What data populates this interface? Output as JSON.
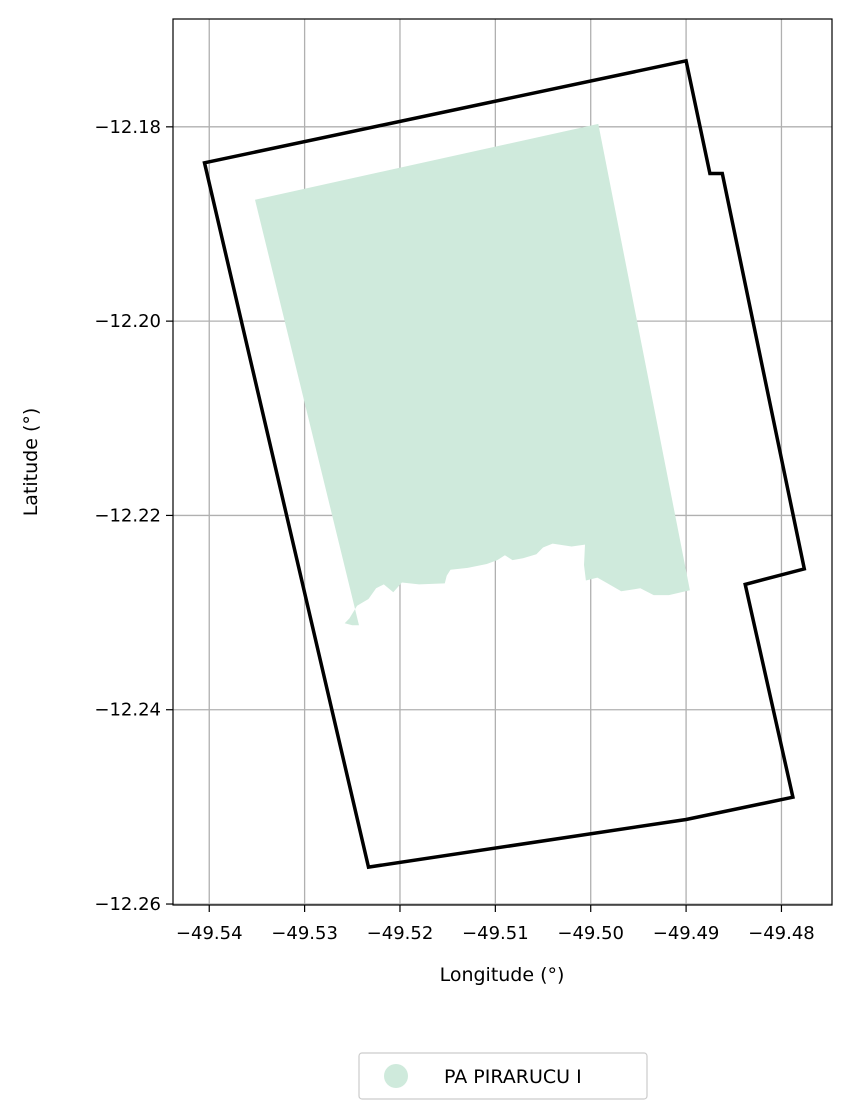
{
  "chart_data": {
    "type": "map",
    "xlabel": "Longitude (°)",
    "ylabel": "Latitude (°)",
    "xlim": [
      -49.5438,
      -49.4747
    ],
    "ylim": [
      -12.2601,
      -12.1689
    ],
    "xticks": [
      -49.54,
      -49.53,
      -49.52,
      -49.51,
      -49.5,
      -49.49,
      -49.48
    ],
    "yticks": [
      -12.18,
      -12.2,
      -12.22,
      -12.24,
      -12.26
    ],
    "xtick_labels": [
      "−49.54",
      "−49.53",
      "−49.52",
      "−49.51",
      "−49.50",
      "−49.49",
      "−49.48"
    ],
    "ytick_labels": [
      "−12.18",
      "−12.20",
      "−12.22",
      "−12.24",
      "−12.26"
    ],
    "grid": true,
    "boundary_color": "#000000",
    "fill_color": "#cfeadc",
    "grid_color": "#b0b0b0",
    "legend_position": "bottom-center",
    "legend": [
      {
        "label": "PA PIRARUCU I",
        "color": "#cfeadc"
      }
    ],
    "boundary": [
      [
        -49.5405,
        -12.1837
      ],
      [
        -49.49,
        -12.1732
      ],
      [
        -49.4875,
        -12.1848
      ],
      [
        -49.4862,
        -12.1848
      ],
      [
        -49.4776,
        -12.2255
      ],
      [
        -49.4838,
        -12.2271
      ],
      [
        -49.4788,
        -12.249
      ],
      [
        -49.49,
        -12.2513
      ],
      [
        -49.5233,
        -12.2562
      ],
      [
        -49.5405,
        -12.1837
      ]
    ],
    "shaded_area": [
      [
        -49.5352,
        -12.1875
      ],
      [
        -49.4992,
        -12.1797
      ],
      [
        -49.4896,
        -12.2277
      ],
      [
        -49.4918,
        -12.2282
      ],
      [
        -49.4934,
        -12.2282
      ],
      [
        -49.4948,
        -12.2275
      ],
      [
        -49.4968,
        -12.2278
      ],
      [
        -49.4984,
        -12.2269
      ],
      [
        -49.4993,
        -12.2264
      ],
      [
        -49.5005,
        -12.2267
      ],
      [
        -49.5007,
        -12.2251
      ],
      [
        -49.5006,
        -12.223
      ],
      [
        -49.502,
        -12.2232
      ],
      [
        -49.504,
        -12.2229
      ],
      [
        -49.505,
        -12.2233
      ],
      [
        -49.5057,
        -12.224
      ],
      [
        -49.5071,
        -12.2244
      ],
      [
        -49.5082,
        -12.2246
      ],
      [
        -49.509,
        -12.2241
      ],
      [
        -49.5098,
        -12.2246
      ],
      [
        -49.5109,
        -12.225
      ],
      [
        -49.5129,
        -12.2254
      ],
      [
        -49.5147,
        -12.2256
      ],
      [
        -49.5151,
        -12.2262
      ],
      [
        -49.5153,
        -12.227
      ],
      [
        -49.518,
        -12.2271
      ],
      [
        -49.5198,
        -12.2269
      ],
      [
        -49.5207,
        -12.2279
      ],
      [
        -49.5217,
        -12.2271
      ],
      [
        -49.5225,
        -12.2275
      ],
      [
        -49.5233,
        -12.2286
      ],
      [
        -49.5245,
        -12.2293
      ],
      [
        -49.5253,
        -12.2306
      ],
      [
        -49.5258,
        -12.2311
      ],
      [
        -49.525,
        -12.2313
      ],
      [
        -49.5243,
        -12.2313
      ],
      [
        -49.5352,
        -12.1875
      ]
    ]
  }
}
